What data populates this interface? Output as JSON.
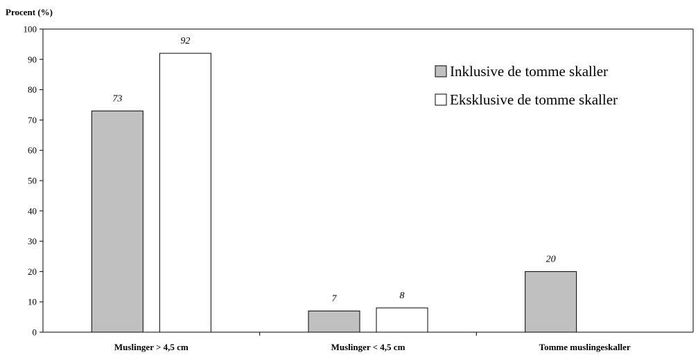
{
  "chart_data": {
    "type": "bar",
    "title": "",
    "ylabel": "Procent (%)",
    "xlabel": "",
    "ylim": [
      0,
      100
    ],
    "yticks": [
      0,
      10,
      20,
      30,
      40,
      50,
      60,
      70,
      80,
      90,
      100
    ],
    "grid": false,
    "legend_position": "top-right",
    "categories": [
      "Muslinger > 4,5 cm",
      "Muslinger < 4,5 cm",
      "Tomme muslingeskaller"
    ],
    "series": [
      {
        "name": "Inklusive de tomme skaller",
        "color": "#c0c0c0",
        "values": [
          73,
          7,
          20
        ],
        "labels": [
          "73",
          "7",
          "20"
        ]
      },
      {
        "name": "Eksklusive de tomme skaller",
        "color": "#ffffff",
        "values": [
          92,
          8,
          null
        ],
        "labels": [
          "92",
          "8",
          ""
        ]
      }
    ]
  }
}
